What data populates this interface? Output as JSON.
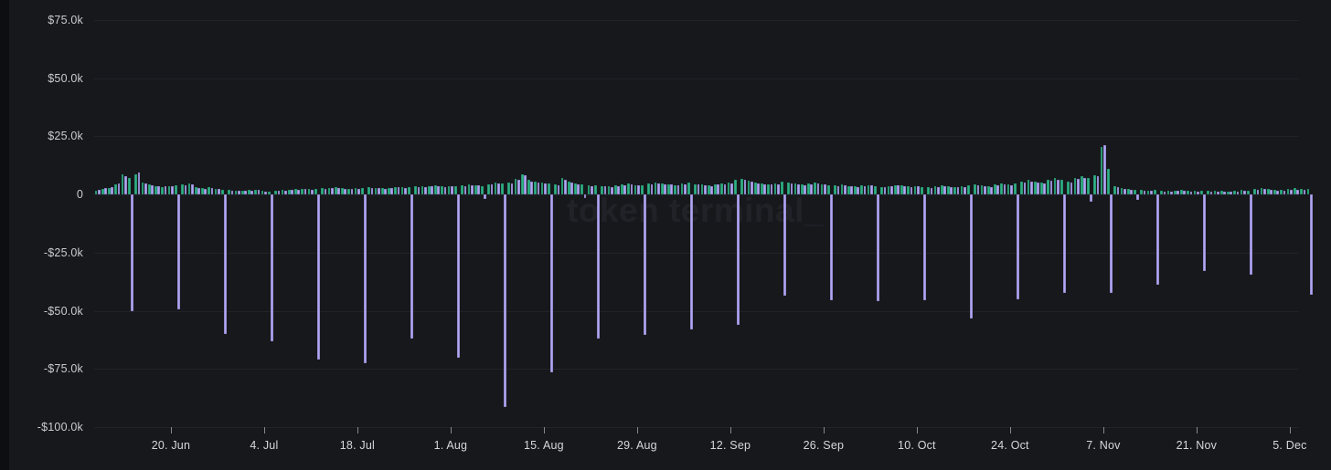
{
  "chart_data": {
    "type": "bar",
    "title": "",
    "watermark": "token terminal_",
    "values_unit": "USD_thousands",
    "grid": true,
    "legend": "none",
    "y_axis": {
      "tick_labels": [
        "$75.0k",
        "$50.0k",
        "$25.0k",
        "0",
        "-$25.0k",
        "-$50.0k",
        "-$75.0k",
        "-$100.0k"
      ],
      "tick_values": [
        75,
        50,
        25,
        0,
        -25,
        -50,
        -75,
        -100
      ],
      "range": [
        -117,
        85
      ]
    },
    "x_axis": {
      "tick_labels": [
        "20. Jun",
        "4. Jul",
        "18. Jul",
        "1. Aug",
        "15. Aug",
        "29. Aug",
        "12. Sep",
        "26. Sep",
        "10. Oct",
        "24. Oct",
        "7. Nov",
        "21. Nov",
        "5. Dec"
      ],
      "tick_day_index": [
        11,
        25,
        39,
        53,
        67,
        81,
        95,
        109,
        123,
        137,
        151,
        165,
        179
      ],
      "total_days": 183,
      "granularity": "daily"
    },
    "series": [
      {
        "name": "teal-daily-bars",
        "color": "#2fb286",
        "values": [
          1.4,
          2.3,
          2.9,
          4.3,
          8.6,
          7.0,
          8.6,
          5.1,
          4.2,
          3.6,
          3.2,
          3.4,
          3.8,
          4.4,
          4.6,
          3.0,
          2.7,
          3.1,
          2.5,
          2.1,
          1.8,
          1.7,
          1.6,
          1.9,
          2.1,
          1.5,
          1.3,
          1.6,
          1.9,
          2.1,
          2.3,
          2.5,
          2.2,
          2.4,
          2.6,
          2.8,
          3.0,
          2.7,
          2.4,
          2.7,
          2.9,
          3.1,
          2.8,
          2.6,
          2.9,
          3.3,
          3.1,
          3.3,
          3.6,
          3.4,
          3.7,
          3.9,
          3.6,
          3.7,
          3.5,
          3.9,
          4.3,
          4.1,
          3.7,
          4.5,
          5.1,
          4.7,
          5.3,
          6.6,
          8.8,
          6.1,
          5.6,
          5.1,
          4.6,
          4.3,
          6.9,
          5.6,
          4.9,
          4.3,
          3.9,
          4.1,
          3.7,
          3.5,
          3.9,
          4.3,
          4.6,
          4.1,
          3.9,
          4.6,
          5.3,
          4.9,
          4.5,
          4.1,
          4.7,
          5.1,
          4.5,
          4.3,
          3.9,
          4.5,
          4.9,
          5.3,
          6.1,
          6.6,
          5.9,
          5.3,
          4.9,
          4.5,
          4.9,
          5.5,
          5.1,
          4.7,
          4.3,
          4.7,
          5.1,
          4.5,
          4.1,
          3.9,
          4.3,
          3.7,
          3.5,
          3.9,
          4.1,
          3.7,
          3.3,
          3.7,
          4.1,
          3.9,
          3.5,
          3.7,
          3.3,
          3.1,
          3.5,
          3.9,
          3.6,
          3.3,
          3.7,
          4.1,
          4.5,
          4.1,
          3.7,
          4.3,
          4.7,
          4.3,
          4.9,
          5.5,
          6.1,
          5.7,
          5.1,
          6.3,
          6.9,
          6.3,
          5.7,
          7.1,
          7.7,
          6.9,
          8.3,
          20.5,
          11.0,
          3.4,
          2.6,
          2.2,
          2.0,
          1.9,
          1.7,
          1.9,
          1.6,
          1.5,
          1.7,
          1.8,
          1.5,
          1.4,
          1.5,
          1.4,
          1.6,
          1.5,
          1.3,
          1.6,
          1.8,
          1.7,
          2.2,
          2.9,
          2.5,
          2.1,
          1.9,
          2.2,
          2.6,
          2.3,
          2.5
        ]
      },
      {
        "name": "purple-daily-bars-weekly-negative",
        "color": "#b2a7f4",
        "values": [
          1.8,
          2.6,
          3.2,
          4.9,
          7.9,
          -50.2,
          9.3,
          4.6,
          3.8,
          3.4,
          3.6,
          3.7,
          -49.5,
          4.1,
          4.2,
          2.7,
          2.4,
          2.9,
          2.2,
          -60,
          1.6,
          1.5,
          1.4,
          1.7,
          1.9,
          1.3,
          -63,
          1.5,
          1.7,
          2.0,
          2.1,
          2.3,
          2.1,
          -71,
          2.4,
          2.6,
          2.7,
          2.5,
          2.2,
          2.5,
          -72.5,
          2.9,
          2.6,
          2.4,
          2.7,
          3.1,
          2.9,
          -62,
          3.3,
          3.1,
          3.5,
          3.6,
          3.3,
          3.5,
          -70,
          3.6,
          4.0,
          3.8,
          -1.8,
          4.2,
          4.7,
          -91.5,
          4.9,
          6.1,
          8.4,
          5.7,
          5.2,
          4.7,
          -76.5,
          4.0,
          6.3,
          5.2,
          4.5,
          -1.5,
          3.6,
          -62,
          3.4,
          3.2,
          3.6,
          4.0,
          4.2,
          3.8,
          -60.5,
          4.3,
          4.9,
          4.5,
          4.2,
          3.8,
          4.4,
          -58,
          4.2,
          4.0,
          3.6,
          4.2,
          4.5,
          4.9,
          -56,
          6.1,
          5.5,
          4.9,
          4.5,
          4.2,
          4.5,
          -43.5,
          4.7,
          4.3,
          4.0,
          4.3,
          4.7,
          4.2,
          -45.5,
          3.6,
          3.9,
          3.4,
          3.2,
          3.6,
          3.8,
          -46,
          3.0,
          3.4,
          3.8,
          3.6,
          3.2,
          3.4,
          -45.5,
          2.8,
          3.1,
          3.5,
          3.2,
          3.0,
          3.3,
          -53.5,
          4.1,
          3.7,
          3.3,
          3.9,
          4.2,
          3.9,
          -45,
          5.0,
          5.6,
          5.2,
          4.6,
          5.8,
          6.3,
          -42.5,
          5.2,
          6.5,
          7.1,
          -3.0,
          7.7,
          21.0,
          -42.5,
          3.0,
          2.2,
          1.9,
          -2.5,
          1.6,
          1.4,
          -39,
          1.3,
          1.2,
          1.4,
          1.5,
          1.2,
          1.1,
          -33,
          1.2,
          1.3,
          1.2,
          1.1,
          1.3,
          1.5,
          -34.5,
          1.8,
          2.4,
          2.0,
          1.7,
          1.5,
          1.8,
          2.1,
          1.9,
          -43
        ]
      }
    ]
  },
  "colors": {
    "page_background": "#0d0e11",
    "panel_background": "#17181c",
    "gridline": "#222328",
    "y_label": "#cbccce",
    "x_label": "#d6d7d9",
    "tick_mark": "#87888b",
    "series_green": "#2fb286",
    "series_purple": "#b2a7f4",
    "watermark": "#212227"
  }
}
